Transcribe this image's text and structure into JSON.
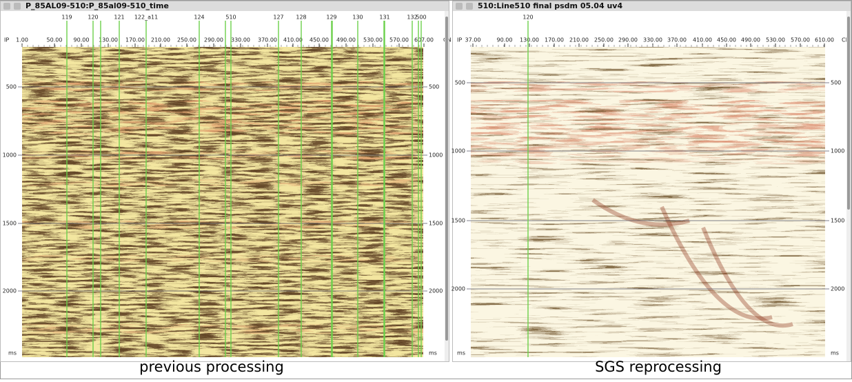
{
  "panels": [
    {
      "title": "P_85AL09-510:P_85al09-510_time",
      "axis_start": "IP",
      "axis_end": "CN",
      "line_labels": [
        "119",
        "120",
        "121",
        "122_a11",
        "124",
        "510",
        "127",
        "128",
        "129",
        "130",
        "131",
        "132",
        "500"
      ],
      "cdp_labels": [
        "1.00",
        "50.00",
        "90.00",
        "130.00",
        "170.00",
        "210.00",
        "250.00",
        "290.00",
        "330.00",
        "370.00",
        "410.00",
        "450.00",
        "490.00",
        "530.00",
        "570.00",
        "607.00"
      ],
      "time_labels": [
        "500",
        "1000",
        "1500",
        "2000",
        "ms"
      ],
      "caption": "previous processing"
    },
    {
      "title": "510:Line510 final psdm 05.04 uv4",
      "axis_start": "IP",
      "axis_end": "CN",
      "line_labels": [
        "120"
      ],
      "cdp_labels": [
        "37.00",
        "90.00",
        "130.00",
        "170.00",
        "210.00",
        "250.00",
        "290.00",
        "330.00",
        "370.00",
        "410.00",
        "450.00",
        "490.00",
        "530.00",
        "570.00",
        "610.00"
      ],
      "time_labels": [
        "500",
        "1000",
        "1500",
        "2000",
        "ms"
      ],
      "caption": "SGS reprocessing"
    }
  ]
}
